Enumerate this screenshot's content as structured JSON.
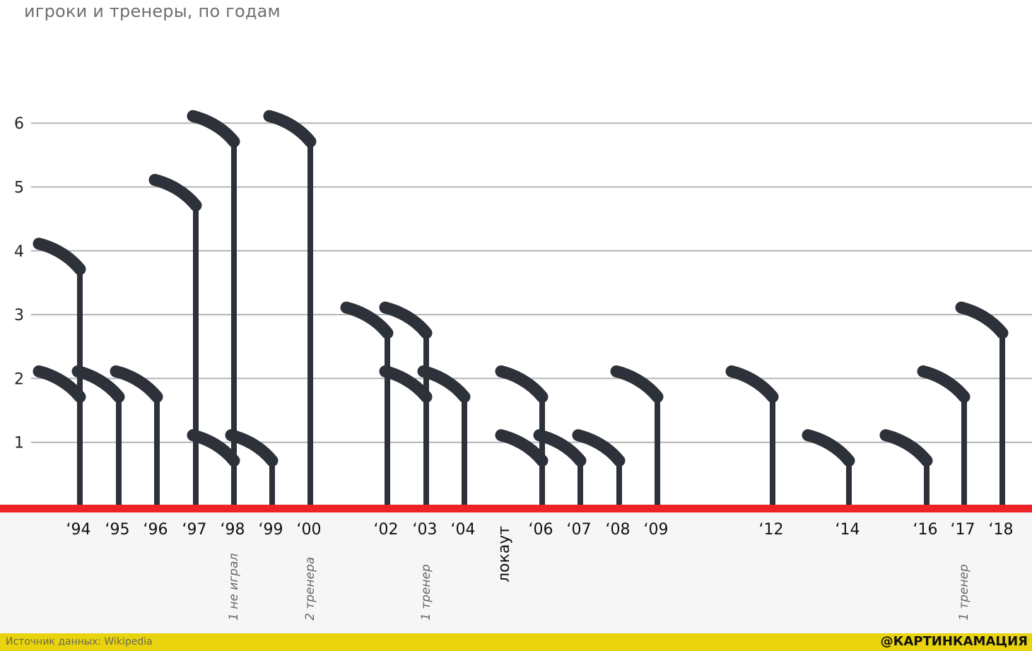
{
  "title": "игроки и тренеры, по годам",
  "chart_data": {
    "type": "bar",
    "ylim": [
      0,
      6.5
    ],
    "yticks": [
      "1",
      "2",
      "3",
      "4",
      "5",
      "6"
    ],
    "grid": true,
    "mark_style": "hockey-stick",
    "colors": {
      "stick": "#2d3139",
      "baseline": "#ee2328",
      "grid": "#b4b4b4",
      "lower_band": "#f6f6f6"
    },
    "seasons": [
      {
        "label": "‘94",
        "x": 1994,
        "values": [
          4,
          2
        ]
      },
      {
        "label": "‘95",
        "x": 1995,
        "values": [
          2
        ]
      },
      {
        "label": "‘96",
        "x": 1996,
        "values": [
          2
        ]
      },
      {
        "label": "‘97",
        "x": 1997,
        "values": [
          5
        ]
      },
      {
        "label": "‘98",
        "x": 1998,
        "values": [
          6,
          1
        ],
        "note": "1 не играл"
      },
      {
        "label": "‘99",
        "x": 1999,
        "values": [
          1
        ]
      },
      {
        "label": "‘00",
        "x": 2000,
        "values": [
          6
        ],
        "note": "2 тренера"
      },
      {
        "label": "‘02",
        "x": 2002,
        "values": [
          3
        ]
      },
      {
        "label": "‘03",
        "x": 2003,
        "values": [
          3,
          2
        ],
        "note": "1 тренер"
      },
      {
        "label": "‘04",
        "x": 2004,
        "values": [
          2
        ]
      },
      {
        "label": "локаут",
        "x": 2005,
        "values": [],
        "vertical_label": true
      },
      {
        "label": "‘06",
        "x": 2006,
        "values": [
          2,
          1
        ]
      },
      {
        "label": "‘07",
        "x": 2007,
        "values": [
          1
        ]
      },
      {
        "label": "‘08",
        "x": 2008,
        "values": [
          1
        ]
      },
      {
        "label": "‘09",
        "x": 2009,
        "values": [
          2
        ]
      },
      {
        "label": "‘12",
        "x": 2012,
        "values": [
          2
        ]
      },
      {
        "label": "‘14",
        "x": 2014,
        "values": [
          1
        ]
      },
      {
        "label": "‘16",
        "x": 2016,
        "values": [
          1
        ]
      },
      {
        "label": "‘17",
        "x": 2017,
        "values": [
          2
        ],
        "note": "1 тренер"
      },
      {
        "label": "‘18",
        "x": 2018,
        "values": [
          3
        ]
      }
    ]
  },
  "footer": {
    "source": "Источник данных: Wikipedia",
    "credit": "@КАРТИНКАМАЦИЯ"
  }
}
